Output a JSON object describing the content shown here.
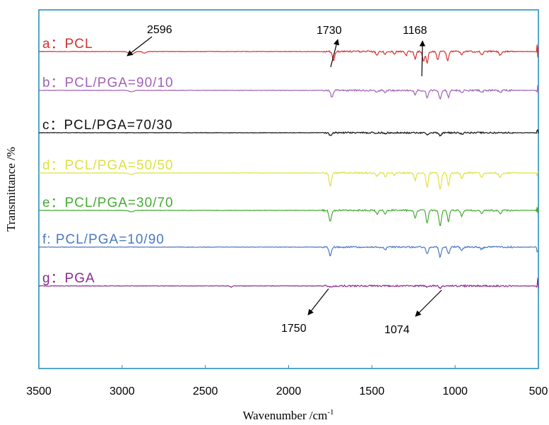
{
  "chart_data": {
    "type": "line",
    "title": "",
    "xlabel": "Wavenumber /cm",
    "xlabel_sup": "-1",
    "ylabel": "Transmittance /%",
    "xlim": [
      3500,
      500
    ],
    "x_reversed": true,
    "x_ticks": [
      "3500",
      "3000",
      "2500",
      "2000",
      "1500",
      "1000",
      "500"
    ],
    "y_ticks": [],
    "grid": false,
    "legend": "none",
    "series": [
      {
        "name": "a：PCL",
        "color": "#d2302f",
        "baseline": 73,
        "dips": [
          [
            2945,
            4,
            22
          ],
          [
            2865,
            2,
            15
          ],
          [
            1730,
            14,
            9
          ],
          [
            1470,
            5,
            9
          ],
          [
            1420,
            4,
            8
          ],
          [
            1365,
            4,
            7
          ],
          [
            1295,
            6,
            8
          ],
          [
            1240,
            10,
            9
          ],
          [
            1190,
            14,
            9
          ],
          [
            1168,
            16,
            8
          ],
          [
            1105,
            12,
            9
          ],
          [
            1045,
            13,
            9
          ],
          [
            960,
            5,
            9
          ],
          [
            840,
            4,
            10
          ],
          [
            730,
            5,
            10
          ]
        ],
        "tail": [
          [
            505,
            14,
            7
          ]
        ]
      },
      {
        "name": "b：PCL/PGA=90/10",
        "color": "#a060b8",
        "baseline": 128,
        "dips": [
          [
            2945,
            2,
            20
          ],
          [
            1740,
            10,
            10
          ],
          [
            1470,
            3,
            9
          ],
          [
            1420,
            3,
            8
          ],
          [
            1240,
            6,
            9
          ],
          [
            1168,
            10,
            9
          ],
          [
            1090,
            12,
            10
          ],
          [
            1040,
            10,
            9
          ],
          [
            960,
            4,
            9
          ],
          [
            840,
            3,
            10
          ],
          [
            730,
            3,
            10
          ]
        ],
        "tail": [
          [
            505,
            8,
            7
          ]
        ]
      },
      {
        "name": "c：PCL/PGA=70/30",
        "color": "#111111",
        "baseline": 188,
        "dips": [
          [
            1750,
            4,
            10
          ],
          [
            1420,
            2,
            8
          ],
          [
            1168,
            3,
            9
          ],
          [
            1090,
            4,
            10
          ],
          [
            960,
            2,
            9
          ]
        ],
        "tail": [
          [
            505,
            7,
            7
          ]
        ]
      },
      {
        "name": "d：PCL/PGA=50/50",
        "color": "#e0e040",
        "baseline": 245,
        "dips": [
          [
            2945,
            2,
            20
          ],
          [
            1750,
            18,
            10
          ],
          [
            1470,
            5,
            9
          ],
          [
            1420,
            6,
            8
          ],
          [
            1365,
            4,
            7
          ],
          [
            1240,
            10,
            9
          ],
          [
            1168,
            20,
            9
          ],
          [
            1090,
            24,
            10
          ],
          [
            1040,
            18,
            9
          ],
          [
            960,
            8,
            9
          ],
          [
            840,
            6,
            10
          ],
          [
            730,
            6,
            10
          ]
        ],
        "tail": [
          [
            505,
            10,
            7
          ]
        ]
      },
      {
        "name": "e：PCL/PGA=30/70",
        "color": "#44aa33",
        "baseline": 298,
        "dips": [
          [
            2945,
            2,
            20
          ],
          [
            1750,
            16,
            10
          ],
          [
            1470,
            5,
            9
          ],
          [
            1420,
            6,
            8
          ],
          [
            1240,
            10,
            9
          ],
          [
            1168,
            18,
            9
          ],
          [
            1090,
            22,
            10
          ],
          [
            1040,
            16,
            9
          ],
          [
            960,
            8,
            9
          ],
          [
            840,
            5,
            10
          ],
          [
            730,
            5,
            10
          ]
        ],
        "tail": [
          [
            505,
            18,
            7
          ]
        ]
      },
      {
        "name": "f: PCL/PGA=10/90",
        "color": "#4a78c0",
        "baseline": 350,
        "dips": [
          [
            1750,
            12,
            10
          ],
          [
            1420,
            4,
            8
          ],
          [
            1168,
            10,
            9
          ],
          [
            1090,
            14,
            10
          ],
          [
            1040,
            10,
            9
          ],
          [
            960,
            5,
            9
          ],
          [
            840,
            3,
            10
          ]
        ],
        "tail": [
          [
            505,
            9,
            7
          ]
        ]
      },
      {
        "name": "g：PGA",
        "color": "#8a2a8a",
        "baseline": 405,
        "dips": [
          [
            2345,
            2,
            8
          ],
          [
            1750,
            2,
            10
          ],
          [
            1168,
            2,
            9
          ],
          [
            1090,
            3,
            10
          ]
        ],
        "tail": [
          [
            505,
            12,
            7
          ]
        ]
      }
    ],
    "annotations": [
      {
        "text": "2596"
      },
      {
        "text": "1730"
      },
      {
        "text": "1168"
      },
      {
        "text": "1750"
      },
      {
        "text": "1074"
      }
    ]
  }
}
